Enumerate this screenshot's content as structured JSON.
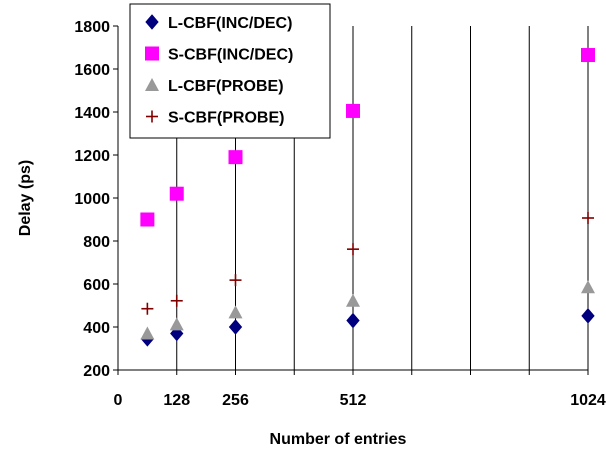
{
  "chart_data": {
    "type": "scatter",
    "xlabel": "Number of entries",
    "ylabel": "Delay (ps)",
    "xlim": [
      0,
      1024
    ],
    "ylim": [
      200,
      1800
    ],
    "xticks": [
      0,
      128,
      256,
      512,
      1024
    ],
    "yticks": [
      200,
      400,
      600,
      800,
      1000,
      1200,
      1400,
      1600,
      1800
    ],
    "x_gridlines": [
      128,
      256,
      384,
      512,
      640,
      768,
      896,
      1024
    ],
    "legend_position": "top-left",
    "series": [
      {
        "name": "L-CBF(INC/DEC)",
        "marker": "diamond",
        "color": "#00007f",
        "x": [
          64,
          128,
          256,
          512,
          1024
        ],
        "y": [
          345,
          370,
          400,
          430,
          452
        ]
      },
      {
        "name": "S-CBF(INC/DEC)",
        "marker": "square",
        "color": "#ff00ff",
        "x": [
          64,
          128,
          256,
          512,
          1024
        ],
        "y": [
          900,
          1020,
          1190,
          1405,
          1665
        ]
      },
      {
        "name": "L-CBF(PROBE)",
        "marker": "triangle",
        "color": "#999999",
        "x": [
          64,
          128,
          256,
          512,
          1024
        ],
        "y": [
          370,
          412,
          468,
          522,
          585
        ]
      },
      {
        "name": "S-CBF(PROBE)",
        "marker": "plus",
        "color": "#800000",
        "x": [
          64,
          128,
          256,
          512,
          1024
        ],
        "y": [
          485,
          522,
          618,
          762,
          907
        ]
      }
    ]
  }
}
